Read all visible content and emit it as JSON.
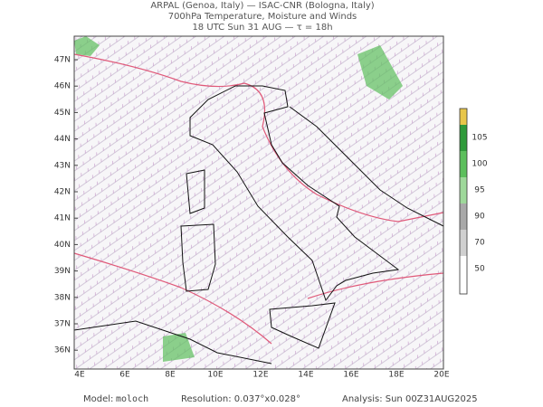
{
  "header": {
    "lines": [
      "ARPAL (Genoa, Italy)  —  ISAC-CNR (Bologna, Italy)",
      "700hPa Temperature, Moisture and Winds",
      "18 UTC Sun 31 AUG  —  τ = 18h"
    ]
  },
  "map": {
    "lat_labels": [
      "47N",
      "46N",
      "45N",
      "44N",
      "43N",
      "42N",
      "41N",
      "40N",
      "39N",
      "38N",
      "37N",
      "36N"
    ],
    "lon_labels": [
      "4E",
      "6E",
      "8E",
      "10E",
      "12E",
      "14E",
      "16E",
      "18E",
      "20E"
    ]
  },
  "colorbar": {
    "labels": [
      "105",
      "100",
      "95",
      "90",
      "70",
      "50"
    ]
  },
  "footer": {
    "model_label": "Model:",
    "model": "moloch",
    "resolution": "Resolution: 0.037°x0.028°",
    "analysis": "Analysis: Sun 00Z31AUG2025"
  }
}
